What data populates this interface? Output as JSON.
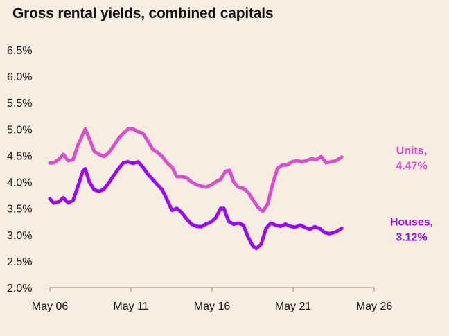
{
  "title": "Gross rental yields, combined capitals",
  "chart_data": {
    "type": "line",
    "title": "Gross rental yields, combined capitals",
    "xlabel": "",
    "ylabel": "",
    "ylim": [
      2.0,
      6.5
    ],
    "y_ticks": [
      "6.5%",
      "6.0%",
      "5.5%",
      "5.0%",
      "4.5%",
      "4.0%",
      "3.5%",
      "3.0%",
      "2.5%",
      "2.0%"
    ],
    "x_ticks": [
      "May 06",
      "May 11",
      "May 16",
      "May 21",
      "May 26"
    ],
    "x_tick_values": [
      2006.37,
      2011.37,
      2016.37,
      2021.37,
      2026.37
    ],
    "grid": false,
    "series": [
      {
        "name": "Units",
        "end_label_line1": "Units,",
        "end_label_line2": "4.47%",
        "color": "#d94fcf",
        "points": [
          [
            2006.37,
            4.36
          ],
          [
            2006.6,
            4.36
          ],
          [
            2006.9,
            4.42
          ],
          [
            2007.2,
            4.52
          ],
          [
            2007.5,
            4.4
          ],
          [
            2007.8,
            4.42
          ],
          [
            2008.1,
            4.7
          ],
          [
            2008.4,
            4.9
          ],
          [
            2008.55,
            5.0
          ],
          [
            2008.8,
            4.82
          ],
          [
            2009.1,
            4.58
          ],
          [
            2009.4,
            4.52
          ],
          [
            2009.7,
            4.48
          ],
          [
            2010.0,
            4.55
          ],
          [
            2010.3,
            4.68
          ],
          [
            2010.6,
            4.82
          ],
          [
            2010.9,
            4.92
          ],
          [
            2011.2,
            5.0
          ],
          [
            2011.5,
            5.0
          ],
          [
            2011.8,
            4.95
          ],
          [
            2012.1,
            4.92
          ],
          [
            2012.4,
            4.78
          ],
          [
            2012.7,
            4.62
          ],
          [
            2013.0,
            4.56
          ],
          [
            2013.3,
            4.48
          ],
          [
            2013.6,
            4.36
          ],
          [
            2013.9,
            4.28
          ],
          [
            2014.2,
            4.1
          ],
          [
            2014.5,
            4.1
          ],
          [
            2014.8,
            4.08
          ],
          [
            2015.1,
            4.0
          ],
          [
            2015.4,
            3.95
          ],
          [
            2015.7,
            3.92
          ],
          [
            2016.0,
            3.9
          ],
          [
            2016.3,
            3.94
          ],
          [
            2016.6,
            4.0
          ],
          [
            2016.9,
            4.05
          ],
          [
            2017.2,
            4.2
          ],
          [
            2017.45,
            4.22
          ],
          [
            2017.7,
            4.0
          ],
          [
            2018.0,
            3.9
          ],
          [
            2018.3,
            3.88
          ],
          [
            2018.6,
            3.8
          ],
          [
            2018.9,
            3.66
          ],
          [
            2019.2,
            3.52
          ],
          [
            2019.5,
            3.44
          ],
          [
            2019.8,
            3.58
          ],
          [
            2020.1,
            3.95
          ],
          [
            2020.4,
            4.25
          ],
          [
            2020.7,
            4.32
          ],
          [
            2021.0,
            4.32
          ],
          [
            2021.3,
            4.38
          ],
          [
            2021.6,
            4.4
          ],
          [
            2021.9,
            4.38
          ],
          [
            2022.2,
            4.4
          ],
          [
            2022.5,
            4.44
          ],
          [
            2022.8,
            4.42
          ],
          [
            2023.1,
            4.48
          ],
          [
            2023.4,
            4.36
          ],
          [
            2023.7,
            4.38
          ],
          [
            2024.0,
            4.4
          ],
          [
            2024.37,
            4.47
          ]
        ]
      },
      {
        "name": "Houses",
        "end_label_line1": "Houses,",
        "end_label_line2": "3.12%",
        "color": "#9a0af0",
        "points": [
          [
            2006.37,
            3.68
          ],
          [
            2006.6,
            3.6
          ],
          [
            2006.9,
            3.62
          ],
          [
            2007.2,
            3.7
          ],
          [
            2007.5,
            3.6
          ],
          [
            2007.8,
            3.65
          ],
          [
            2008.1,
            3.92
          ],
          [
            2008.4,
            4.2
          ],
          [
            2008.55,
            4.25
          ],
          [
            2008.8,
            4.0
          ],
          [
            2009.1,
            3.85
          ],
          [
            2009.4,
            3.82
          ],
          [
            2009.7,
            3.86
          ],
          [
            2010.0,
            3.98
          ],
          [
            2010.3,
            4.12
          ],
          [
            2010.6,
            4.25
          ],
          [
            2010.9,
            4.36
          ],
          [
            2011.2,
            4.38
          ],
          [
            2011.5,
            4.35
          ],
          [
            2011.8,
            4.38
          ],
          [
            2012.1,
            4.28
          ],
          [
            2012.4,
            4.15
          ],
          [
            2012.7,
            4.05
          ],
          [
            2013.0,
            3.95
          ],
          [
            2013.3,
            3.85
          ],
          [
            2013.6,
            3.66
          ],
          [
            2013.9,
            3.46
          ],
          [
            2014.2,
            3.5
          ],
          [
            2014.5,
            3.42
          ],
          [
            2014.8,
            3.3
          ],
          [
            2015.1,
            3.2
          ],
          [
            2015.4,
            3.16
          ],
          [
            2015.7,
            3.15
          ],
          [
            2016.0,
            3.2
          ],
          [
            2016.3,
            3.24
          ],
          [
            2016.6,
            3.32
          ],
          [
            2016.9,
            3.5
          ],
          [
            2017.1,
            3.5
          ],
          [
            2017.4,
            3.25
          ],
          [
            2017.7,
            3.2
          ],
          [
            2018.0,
            3.22
          ],
          [
            2018.3,
            3.18
          ],
          [
            2018.6,
            2.95
          ],
          [
            2018.9,
            2.78
          ],
          [
            2019.1,
            2.74
          ],
          [
            2019.4,
            2.82
          ],
          [
            2019.7,
            3.12
          ],
          [
            2020.0,
            3.22
          ],
          [
            2020.3,
            3.18
          ],
          [
            2020.6,
            3.16
          ],
          [
            2020.9,
            3.2
          ],
          [
            2021.2,
            3.16
          ],
          [
            2021.5,
            3.14
          ],
          [
            2021.8,
            3.18
          ],
          [
            2022.1,
            3.14
          ],
          [
            2022.4,
            3.1
          ],
          [
            2022.7,
            3.15
          ],
          [
            2023.0,
            3.12
          ],
          [
            2023.3,
            3.04
          ],
          [
            2023.6,
            3.02
          ],
          [
            2024.0,
            3.05
          ],
          [
            2024.37,
            3.12
          ]
        ]
      }
    ]
  }
}
